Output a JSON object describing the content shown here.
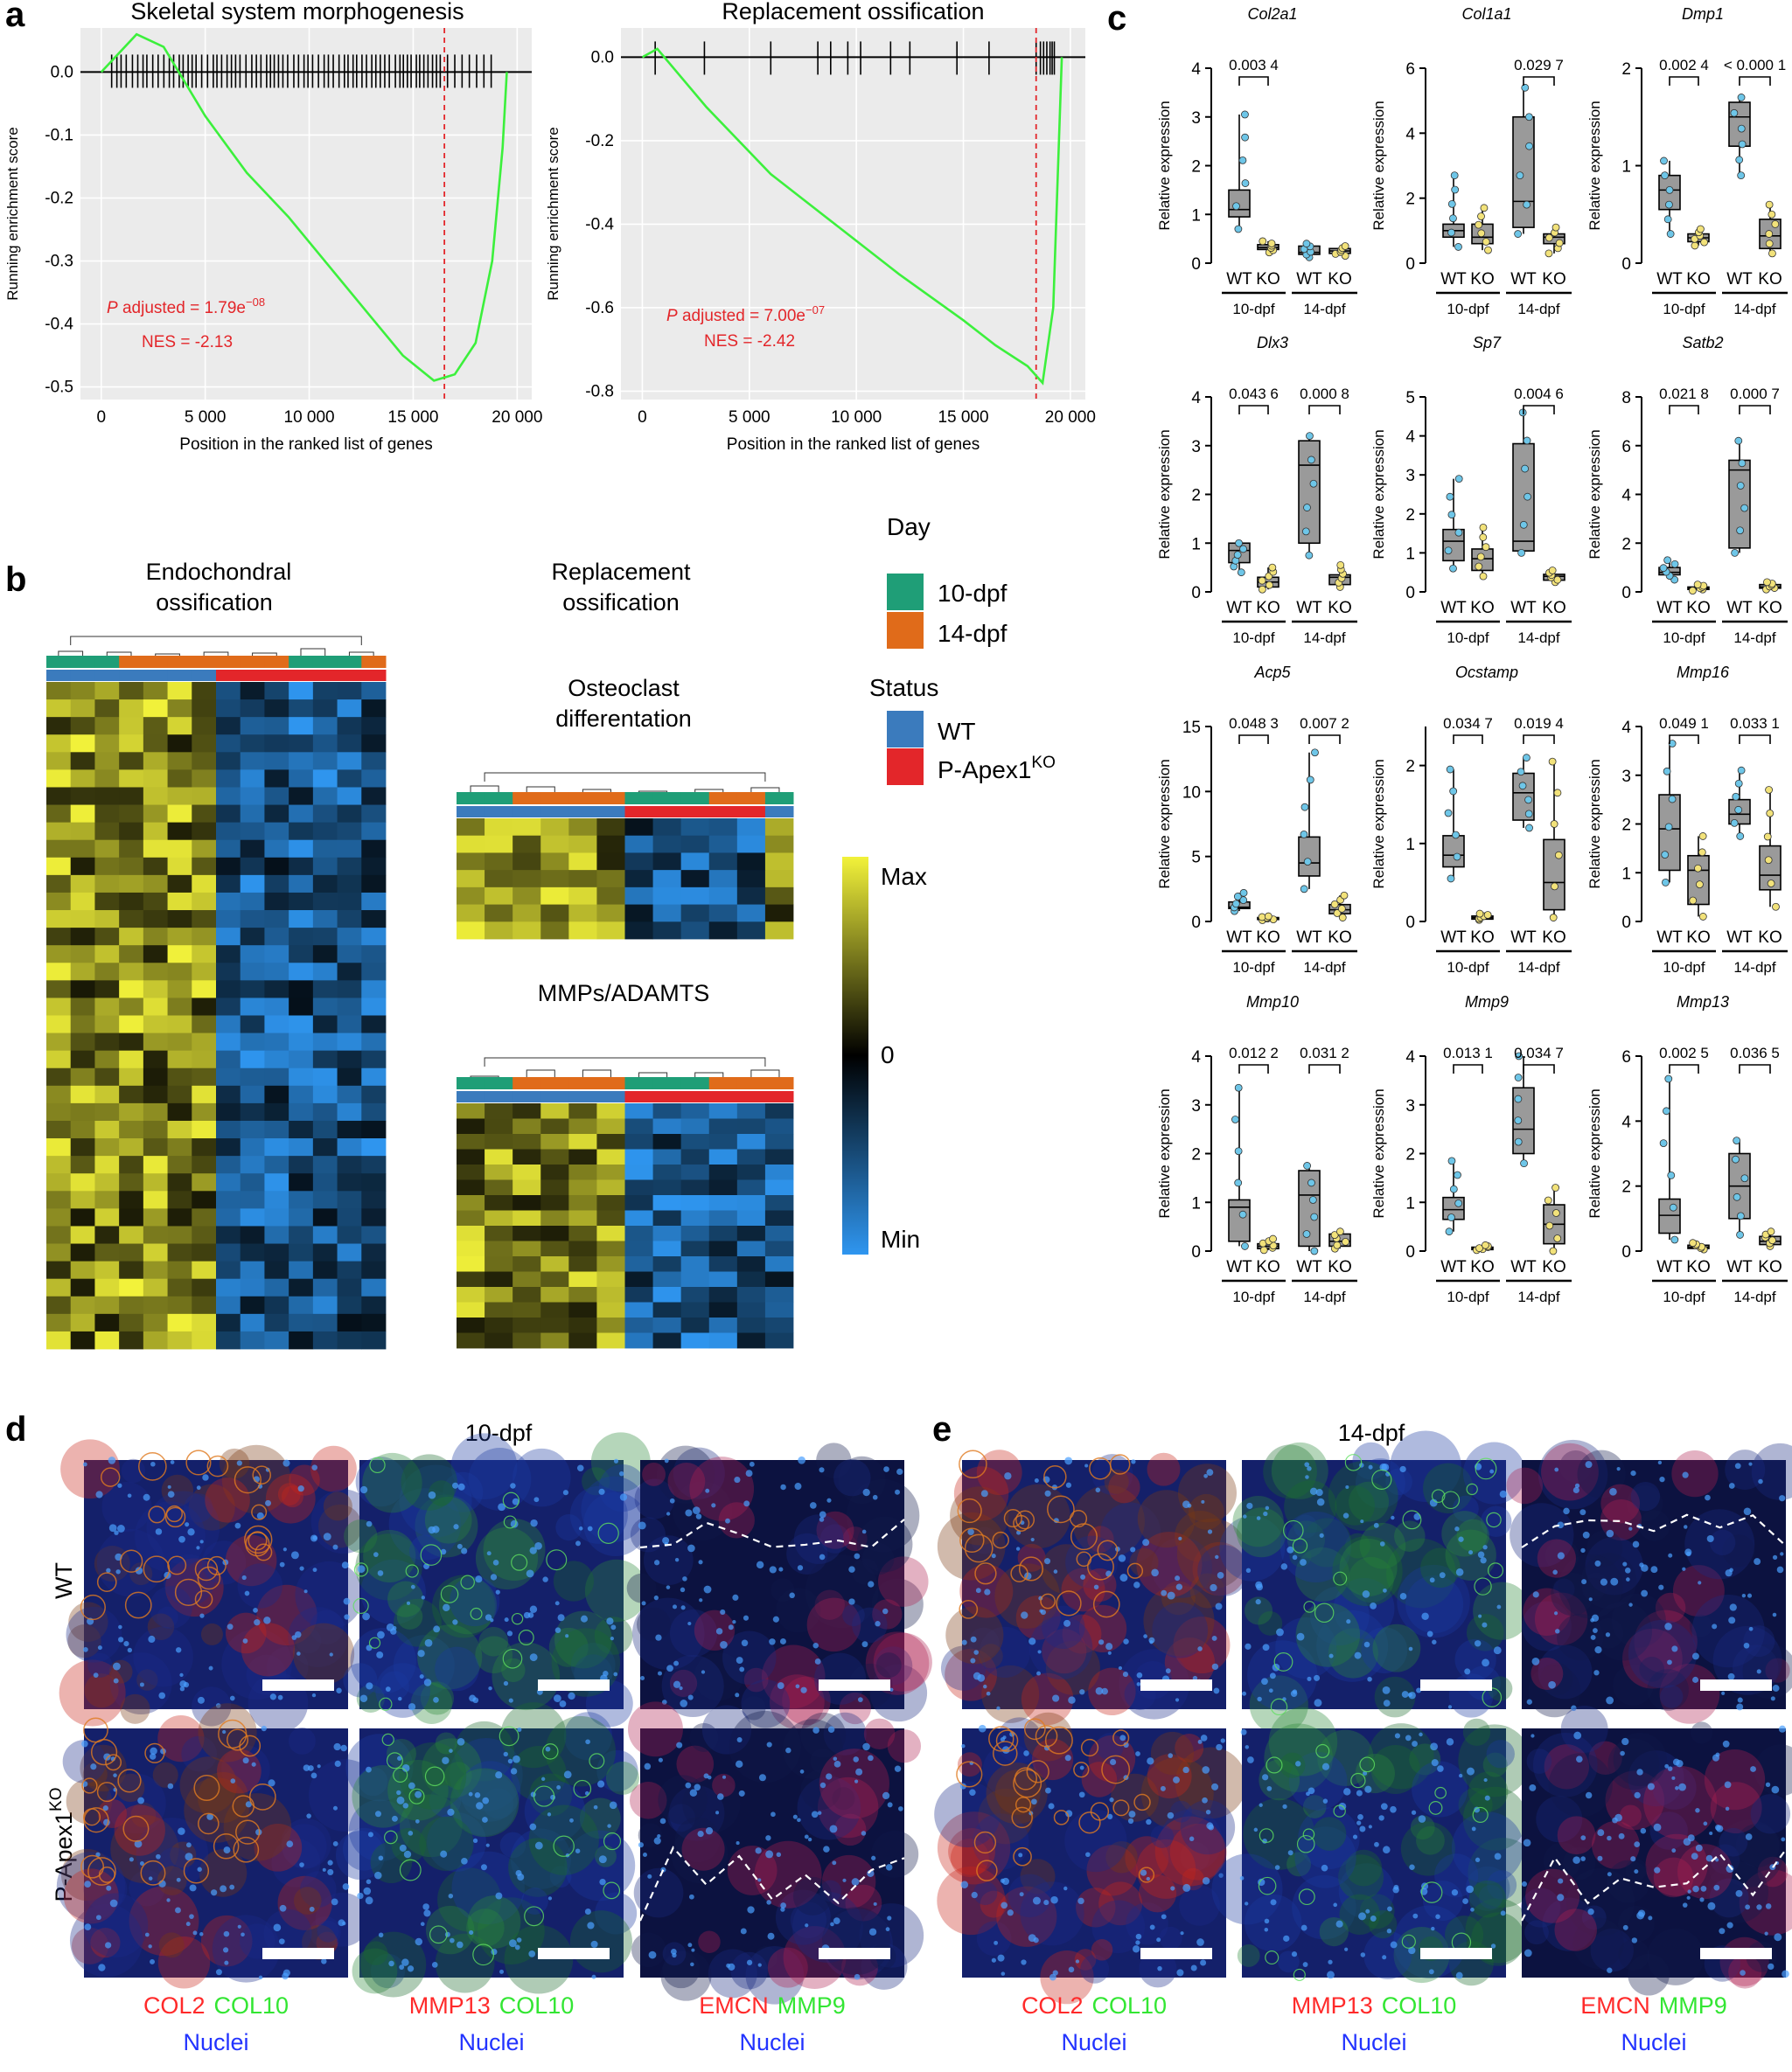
{
  "panels": {
    "a": "a",
    "b": "b",
    "c": "c",
    "d": "d",
    "e": "e"
  },
  "panel_a": {
    "plots": [
      {
        "title": "Skeletal system morphogenesis",
        "xlabel": "Position in the ranked list of genes",
        "ylabel": "Running enrichment score",
        "padj_label": "P",
        "padj_rest": " adjusted = 1.79e",
        "padj_exp": "−08",
        "nes": "NES = -2.13",
        "yticks": [
          "0.0",
          "-0.1",
          "-0.2",
          "-0.3",
          "-0.4",
          "-0.5"
        ],
        "xticks": [
          "0",
          "5 000",
          "10 000",
          "15 000",
          "20 000"
        ]
      },
      {
        "title": "Replacement ossification",
        "xlabel": "Position in the ranked list of genes",
        "ylabel": "Running enrichment score",
        "padj_label": "P",
        "padj_rest": " adjusted = 7.00e",
        "padj_exp": "−07",
        "nes": "NES = -2.42",
        "yticks": [
          "0.0",
          "-0.2",
          "-0.4",
          "-0.6",
          "-0.8"
        ],
        "xticks": [
          "0",
          "5 000",
          "10 000",
          "15 000",
          "20 000"
        ]
      }
    ]
  },
  "chart_data": [
    {
      "type": "line",
      "title": "Skeletal system morphogenesis",
      "xlabel": "Position in the ranked list of genes",
      "ylabel": "Running enrichment score",
      "xlim": [
        0,
        20000
      ],
      "ylim": [
        -0.5,
        0.05
      ],
      "x": [
        0,
        1700,
        3000,
        5000,
        7000,
        9000,
        11000,
        13000,
        14500,
        16000,
        17000,
        18000,
        18800,
        19300,
        19500
      ],
      "y": [
        0.0,
        0.06,
        0.04,
        -0.07,
        -0.16,
        -0.23,
        -0.31,
        -0.39,
        -0.45,
        -0.49,
        -0.48,
        -0.43,
        -0.3,
        -0.12,
        0.0
      ],
      "threshold_x": 16500,
      "annotations": [
        "P adjusted = 1.79e−08",
        "NES = -2.13"
      ]
    },
    {
      "type": "line",
      "title": "Replacement ossification",
      "xlabel": "Position in the ranked list of genes",
      "ylabel": "Running enrichment score",
      "xlim": [
        0,
        20000
      ],
      "ylim": [
        -0.8,
        0.05
      ],
      "x": [
        0,
        700,
        3000,
        6000,
        9000,
        12000,
        15000,
        16500,
        18000,
        18700,
        19200,
        19600
      ],
      "y": [
        0.0,
        0.02,
        -0.12,
        -0.28,
        -0.4,
        -0.52,
        -0.63,
        -0.69,
        -0.74,
        -0.78,
        -0.6,
        0.0
      ],
      "threshold_x": 18400,
      "annotations": [
        "P adjusted = 7.00e−07",
        "NES = -2.42"
      ]
    }
  ],
  "panel_b": {
    "heatmap1_title_line1": "Endochondral",
    "heatmap1_title_line2": "ossification",
    "heatmap2_title_line1": "Replacement",
    "heatmap2_title_line2": "ossification",
    "heatmap3_title_line1": "Osteoclast",
    "heatmap3_title_line2": "differentation",
    "heatmap4_title": "MMPs/ADAMTS",
    "legend_day_title": "Day",
    "legend_day_items": [
      "10-dpf",
      "14-dpf"
    ],
    "legend_status_title": "Status",
    "legend_status_wt": "WT",
    "legend_status_ko": "P-Apex1",
    "legend_status_ko_sup": "KO",
    "scale_max": "Max",
    "scale_zero": "0",
    "scale_min": "Min",
    "colors": {
      "day10": "#1f9e77",
      "day14": "#e06b1a",
      "wt": "#3b7bbd",
      "ko": "#e3262a",
      "max": "#f2f23a",
      "zero": "#000000",
      "min": "#2f96f0"
    }
  },
  "panel_c": {
    "ylabel": "Relative expression",
    "group_wt": "WT",
    "group_ko": "KO",
    "day10": "10-dpf",
    "day14": "14-dpf",
    "genes": [
      {
        "name": "Col2a1",
        "ymax": 4,
        "yticks": [
          "0",
          "1",
          "2",
          "3",
          "4"
        ],
        "p10": "0.003 4",
        "p14": "",
        "boxes": [
          [
            0.7,
            0.95,
            1.1,
            1.5,
            3.05
          ],
          [
            0.22,
            0.28,
            0.32,
            0.38,
            0.45
          ],
          [
            0.12,
            0.18,
            0.22,
            0.35,
            0.4
          ],
          [
            0.15,
            0.2,
            0.25,
            0.3,
            0.35
          ]
        ]
      },
      {
        "name": "Col1a1",
        "ymax": 6,
        "yticks": [
          "0",
          "2",
          "4",
          "6"
        ],
        "p10": "",
        "p14": "0.029 7",
        "boxes": [
          [
            0.5,
            0.8,
            1.0,
            1.2,
            2.7
          ],
          [
            0.4,
            0.6,
            0.8,
            1.2,
            1.7
          ],
          [
            0.9,
            1.1,
            1.9,
            4.5,
            5.4
          ],
          [
            0.3,
            0.6,
            0.8,
            0.9,
            1.1
          ]
        ]
      },
      {
        "name": "Dmp1",
        "ymax": 2,
        "yticks": [
          "0",
          "1",
          "2"
        ],
        "p10": "0.002 4",
        "p14": "< 0.000 1",
        "boxes": [
          [
            0.3,
            0.55,
            0.75,
            0.9,
            1.05
          ],
          [
            0.18,
            0.22,
            0.26,
            0.3,
            0.35
          ],
          [
            0.9,
            1.2,
            1.5,
            1.65,
            1.7
          ],
          [
            0.1,
            0.15,
            0.28,
            0.45,
            0.6
          ]
        ]
      },
      {
        "name": "Dlx3",
        "ymax": 4,
        "yticks": [
          "0",
          "1",
          "2",
          "3",
          "4"
        ],
        "p10": "0.043 6",
        "p14": "0.000 8",
        "boxes": [
          [
            0.4,
            0.6,
            0.85,
            1.0,
            1.0
          ],
          [
            0.05,
            0.1,
            0.2,
            0.3,
            0.5
          ],
          [
            0.75,
            1.0,
            2.6,
            3.1,
            3.2
          ],
          [
            0.1,
            0.15,
            0.3,
            0.35,
            0.55
          ]
        ]
      },
      {
        "name": "Sp7",
        "ymax": 5,
        "yticks": [
          "0",
          "1",
          "2",
          "3",
          "4",
          "5"
        ],
        "p10": "",
        "p14": "0.004 6",
        "boxes": [
          [
            0.6,
            0.8,
            1.3,
            1.6,
            2.9
          ],
          [
            0.4,
            0.55,
            0.85,
            1.1,
            1.65
          ],
          [
            1.0,
            1.05,
            1.3,
            3.8,
            4.6
          ],
          [
            0.25,
            0.3,
            0.4,
            0.45,
            0.55
          ]
        ]
      },
      {
        "name": "Satb2",
        "ymax": 8,
        "yticks": [
          "0",
          "2",
          "4",
          "6",
          "8"
        ],
        "p10": "0.021 8",
        "p14": "0.000 7",
        "boxes": [
          [
            0.5,
            0.7,
            0.8,
            1.0,
            1.3
          ],
          [
            0.05,
            0.1,
            0.15,
            0.2,
            0.3
          ],
          [
            1.6,
            1.8,
            5.0,
            5.4,
            6.2
          ],
          [
            0.1,
            0.15,
            0.2,
            0.3,
            0.4
          ]
        ]
      },
      {
        "name": "Acp5",
        "ymax": 15,
        "yticks": [
          "0",
          "5",
          "10",
          "15"
        ],
        "p10": "0.048 3",
        "p14": "0.007 2",
        "boxes": [
          [
            0.8,
            1.0,
            1.1,
            1.5,
            2.2
          ],
          [
            0.1,
            0.15,
            0.2,
            0.3,
            0.4
          ],
          [
            2.5,
            3.5,
            4.5,
            6.5,
            13.0
          ],
          [
            0.3,
            0.6,
            0.9,
            1.3,
            2.0
          ]
        ]
      },
      {
        "name": "Ocstamp",
        "ymax": 2.5,
        "yticks": [
          "0",
          "1",
          "2"
        ],
        "p10": "0.034 7",
        "p14": "0.019 4",
        "boxes": [
          [
            0.55,
            0.7,
            0.85,
            1.1,
            1.95
          ],
          [
            0.02,
            0.03,
            0.05,
            0.07,
            0.1
          ],
          [
            1.2,
            1.3,
            1.65,
            1.9,
            2.1
          ],
          [
            0.05,
            0.15,
            0.5,
            1.05,
            2.05
          ]
        ]
      },
      {
        "name": "Mmp16",
        "ymax": 4,
        "yticks": [
          "0",
          "1",
          "2",
          "3",
          "4"
        ],
        "p10": "0.049 1",
        "p14": "0.033 1",
        "boxes": [
          [
            0.8,
            1.05,
            1.9,
            2.6,
            3.65
          ],
          [
            0.1,
            0.35,
            1.05,
            1.35,
            1.75
          ],
          [
            1.75,
            2.0,
            2.2,
            2.5,
            3.1
          ],
          [
            0.3,
            0.65,
            0.95,
            1.55,
            2.7
          ]
        ]
      },
      {
        "name": "Mmp10",
        "ymax": 4,
        "yticks": [
          "0",
          "1",
          "2",
          "3",
          "4"
        ],
        "p10": "0.012 2",
        "p14": "0.031 2",
        "boxes": [
          [
            0.1,
            0.2,
            0.9,
            1.05,
            3.35
          ],
          [
            0.02,
            0.05,
            0.1,
            0.15,
            0.25
          ],
          [
            0.0,
            0.1,
            1.15,
            1.65,
            1.75
          ],
          [
            0.05,
            0.1,
            0.2,
            0.35,
            0.4
          ]
        ]
      },
      {
        "name": "Mmp9",
        "ymax": 4,
        "yticks": [
          "0",
          "1",
          "2",
          "3",
          "4"
        ],
        "p10": "0.013 1",
        "p14": "0.034 7",
        "boxes": [
          [
            0.4,
            0.65,
            0.85,
            1.1,
            1.85
          ],
          [
            0.02,
            0.03,
            0.05,
            0.08,
            0.12
          ],
          [
            1.8,
            2.0,
            2.5,
            3.35,
            4.0
          ],
          [
            0.0,
            0.15,
            0.55,
            0.95,
            1.3
          ]
        ]
      },
      {
        "name": "Mmp13",
        "ymax": 6,
        "yticks": [
          "0",
          "2",
          "4",
          "6"
        ],
        "p10": "0.002 5",
        "p14": "0.036 5",
        "boxes": [
          [
            0.35,
            0.55,
            1.1,
            1.6,
            5.3
          ],
          [
            0.05,
            0.08,
            0.12,
            0.18,
            0.25
          ],
          [
            0.5,
            1.0,
            2.0,
            3.0,
            3.4
          ],
          [
            0.15,
            0.2,
            0.3,
            0.45,
            0.6
          ]
        ]
      }
    ]
  },
  "panel_d": {
    "title": "10-dpf",
    "row_wt": "WT",
    "row_ko": "P-Apex1",
    "row_ko_sup": "KO",
    "captions": [
      {
        "a": "COL2",
        "b": "COL10",
        "c": "Nuclei"
      },
      {
        "a": "MMP13",
        "b": "COL10",
        "c": "Nuclei"
      },
      {
        "a": "EMCN",
        "b": "MMP9",
        "c": "Nuclei"
      }
    ]
  },
  "panel_e": {
    "title": "14-dpf",
    "captions": [
      {
        "a": "COL2",
        "b": "COL10",
        "c": "Nuclei"
      },
      {
        "a": "MMP13",
        "b": "COL10",
        "c": "Nuclei"
      },
      {
        "a": "EMCN",
        "b": "MMP9",
        "c": "Nuclei"
      }
    ]
  }
}
